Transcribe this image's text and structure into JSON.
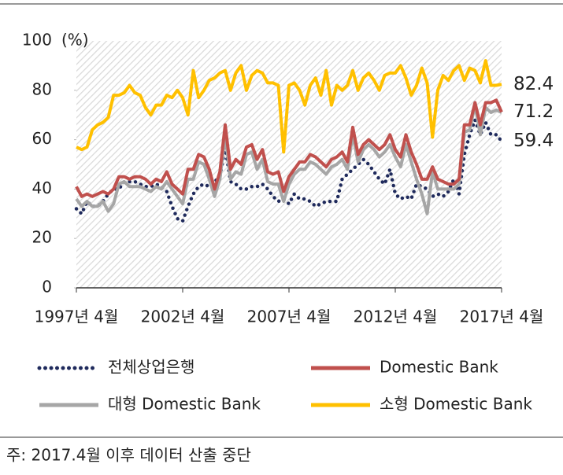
{
  "chart_data": {
    "type": "line",
    "y_label": "(%)",
    "note": "주: 2017.4월 이후 데이터 산출 중단",
    "categories": [
      "1997년 4월",
      null,
      null,
      null,
      null,
      null,
      null,
      null,
      null,
      null,
      null,
      null,
      null,
      null,
      null,
      null,
      null,
      null,
      null,
      null,
      "2002년 4월",
      null,
      null,
      null,
      null,
      null,
      null,
      null,
      null,
      null,
      null,
      null,
      null,
      null,
      null,
      null,
      null,
      null,
      null,
      null,
      "2007년 4월",
      null,
      null,
      null,
      null,
      null,
      null,
      null,
      null,
      null,
      null,
      null,
      null,
      null,
      null,
      null,
      null,
      null,
      null,
      null,
      "2012년 4월",
      null,
      null,
      null,
      null,
      null,
      null,
      null,
      null,
      null,
      null,
      null,
      null,
      null,
      null,
      null,
      null,
      null,
      null,
      null,
      "2017년 4월"
    ],
    "ylim": [
      0,
      100
    ],
    "yticks": [
      0,
      20,
      40,
      60,
      80,
      100
    ],
    "grid": false,
    "series": [
      {
        "name": "전체상업은행",
        "color": "#1f2a5c",
        "style": "dotted",
        "values": [
          32,
          30,
          35,
          33,
          33,
          35,
          38,
          40,
          40,
          43,
          43,
          43,
          42,
          41,
          41,
          42,
          41,
          39,
          33,
          28,
          27,
          33,
          38,
          41,
          42,
          41,
          43,
          45,
          57,
          43,
          42,
          40,
          40,
          41,
          41,
          42,
          40,
          37,
          35,
          36,
          34,
          38,
          36,
          36,
          35,
          33,
          34,
          35,
          35,
          35,
          44,
          46,
          48,
          50,
          52,
          50,
          47,
          44,
          42,
          48,
          38,
          36,
          37,
          36,
          42,
          41,
          40,
          37,
          38,
          37,
          39,
          44,
          38,
          54,
          62,
          68,
          62,
          67,
          62,
          62,
          59.4
        ]
      },
      {
        "name": "대형 Domestic Bank",
        "color": "#a6a6a6",
        "style": "solid",
        "values": [
          36,
          33,
          35,
          33,
          33,
          35,
          31,
          34,
          42,
          43,
          41,
          41,
          41,
          40,
          39,
          41,
          40,
          43,
          40,
          37,
          34,
          44,
          44,
          51,
          50,
          44,
          37,
          44,
          62,
          44,
          47,
          46,
          54,
          55,
          48,
          52,
          43,
          42,
          42,
          35,
          42,
          46,
          48,
          48,
          51,
          50,
          48,
          46,
          49,
          50,
          52,
          48,
          62,
          51,
          56,
          58,
          56,
          53,
          55,
          58,
          53,
          49,
          58,
          51,
          44,
          38,
          30,
          47,
          40,
          40,
          40,
          40,
          42,
          63,
          64,
          74,
          62,
          73,
          71,
          72,
          71
        ]
      },
      {
        "name": "Domestic Bank",
        "color": "#c0504d",
        "style": "solid",
        "values": [
          41,
          37,
          38,
          37,
          38,
          39,
          38,
          40,
          45,
          45,
          44,
          45,
          45,
          44,
          42,
          44,
          43,
          47,
          42,
          40,
          38,
          48,
          48,
          54,
          53,
          48,
          40,
          47,
          66,
          48,
          52,
          50,
          57,
          58,
          52,
          56,
          47,
          46,
          47,
          39,
          45,
          48,
          51,
          51,
          54,
          53,
          51,
          49,
          52,
          53,
          55,
          51,
          65,
          54,
          58,
          60,
          58,
          56,
          58,
          62,
          56,
          53,
          62,
          55,
          50,
          44,
          44,
          49,
          44,
          43,
          42,
          42,
          44,
          66,
          66,
          75,
          66,
          75,
          75,
          76,
          71.2
        ]
      },
      {
        "name": "소형 Domestic Bank",
        "color": "#ffc000",
        "style": "solid",
        "values": [
          57,
          56,
          57,
          64,
          66,
          67,
          69,
          78,
          78,
          79,
          82,
          79,
          78,
          73,
          70,
          74,
          74,
          78,
          77,
          80,
          77,
          70,
          88,
          77,
          80,
          84,
          85,
          87,
          88,
          80,
          87,
          90,
          80,
          86,
          88,
          87,
          83,
          83,
          82,
          55,
          82,
          83,
          80,
          74,
          82,
          85,
          78,
          88,
          74,
          82,
          80,
          82,
          88,
          80,
          85,
          87,
          84,
          80,
          86,
          87,
          87,
          90,
          85,
          78,
          82,
          89,
          83,
          61,
          80,
          86,
          84,
          88,
          90,
          84,
          89,
          88,
          83,
          92,
          82,
          82,
          82.4
        ]
      }
    ]
  }
}
